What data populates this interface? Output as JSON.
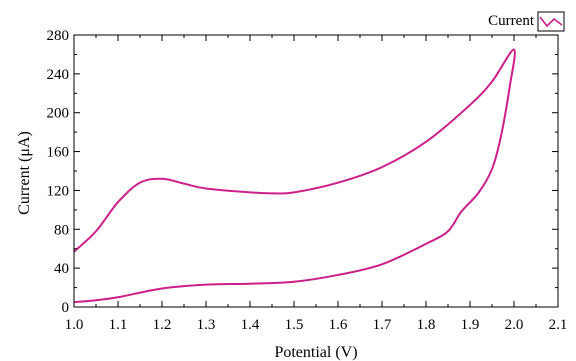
{
  "chart_data": {
    "type": "line",
    "xlabel": "Potential (V)",
    "ylabel": "Current (μA)",
    "xlim": [
      1.0,
      2.1
    ],
    "ylim": [
      0,
      280
    ],
    "xticks": [
      "1.0",
      "1.1",
      "1.2",
      "1.3",
      "1.4",
      "1.5",
      "1.6",
      "1.7",
      "1.8",
      "1.9",
      "2.0",
      "2.1"
    ],
    "yticks": [
      "0",
      "40",
      "80",
      "120",
      "160",
      "200",
      "240",
      "280"
    ],
    "grid": false,
    "legend_position": "top-right",
    "series": [
      {
        "name": "Current",
        "color": "#cc1f8a",
        "x": [
          1.0,
          1.05,
          1.1,
          1.15,
          1.2,
          1.25,
          1.3,
          1.4,
          1.45,
          1.5,
          1.6,
          1.7,
          1.8,
          1.9,
          1.95,
          2.0,
          1.99,
          1.97,
          1.95,
          1.92,
          1.88,
          1.85,
          1.8,
          1.7,
          1.6,
          1.5,
          1.4,
          1.3,
          1.2,
          1.1,
          1.05,
          1.0
        ],
        "y": [
          57,
          78,
          108,
          128,
          132,
          127,
          122,
          118,
          117,
          118,
          128,
          144,
          170,
          208,
          232,
          265,
          226,
          175,
          142,
          118,
          98,
          78,
          65,
          44,
          33,
          26,
          24,
          23,
          19,
          10,
          7,
          5
        ]
      }
    ]
  }
}
